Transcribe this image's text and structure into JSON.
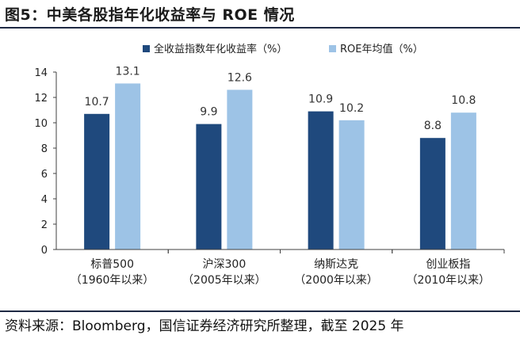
{
  "figure_title": "图5：中美各股指年化收益率与 ROE 情况",
  "source": "资料来源：Bloomberg，国信证券经济研究所整理，截至 2025 年",
  "colors": {
    "series_dark": "#1f497d",
    "series_light": "#9dc3e6",
    "axis": "#404040",
    "rule": "#1f2a44"
  },
  "chart_data": {
    "type": "bar",
    "categories": [
      [
        "标普500",
        "（1960年以来）"
      ],
      [
        "沪深300",
        "（2005年以来）"
      ],
      [
        "纳斯达克",
        "（2000年以来）"
      ],
      [
        "创业板指",
        "（2010年以来）"
      ]
    ],
    "series": [
      {
        "name": "全收益指数年化收益率（%）",
        "values": [
          10.7,
          9.9,
          10.9,
          8.8
        ],
        "labels": [
          "10.7",
          "9.9",
          "10.9",
          "8.8"
        ]
      },
      {
        "name": "ROE年均值（%）",
        "values": [
          13.1,
          12.6,
          10.2,
          10.8
        ],
        "labels": [
          "13.1",
          "12.6",
          "10.2",
          "10.8"
        ]
      }
    ],
    "ylim": [
      0,
      14
    ],
    "yticks": [
      "0",
      "2",
      "4",
      "6",
      "8",
      "10",
      "12",
      "14"
    ],
    "grid": false,
    "legend_position": "top-center",
    "data_labels": true
  }
}
